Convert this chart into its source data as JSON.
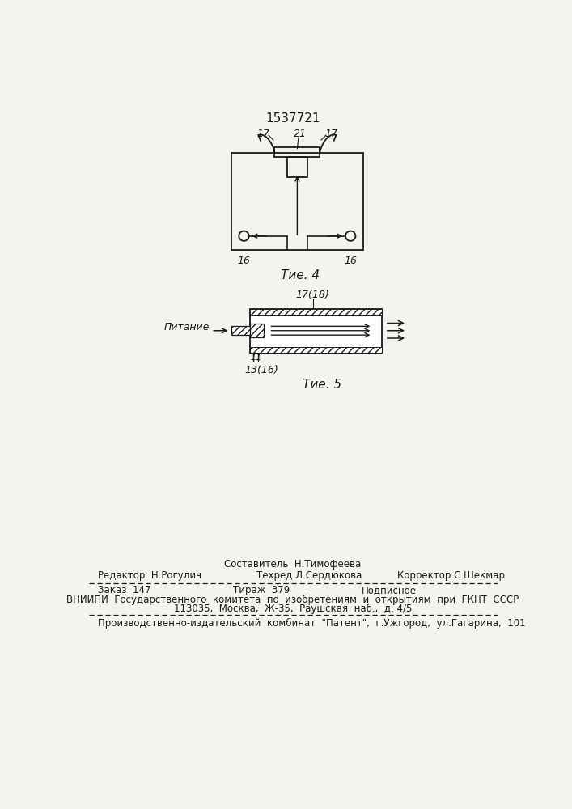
{
  "patent_number": "1537721",
  "fig4_caption": "Τие. 4",
  "fig5_caption": "Τие. 5",
  "fig4_label_16_left": "16",
  "fig4_label_16_right": "16",
  "fig4_label_17_left": "17",
  "fig4_label_17_right": "17",
  "fig4_label_21": "21",
  "fig5_label_17_18": "17(18)",
  "fig5_label_13_16": "13(16)",
  "fig5_label_pitanie": "Питание",
  "fig5_label_11": "11",
  "footer_line0_center": "Составитель  Н.Тимофеева",
  "footer_line1_left": "Редактор  Н.Рогулич",
  "footer_line1_center": "Техред Л.Сердюкова",
  "footer_line1_right": "Корректор С.Шекмар",
  "footer_zakaz": "Заказ  147",
  "footer_tirazh": "Тираж  379",
  "footer_podpisnoe": "Подписное",
  "footer_vniip": "ВНИИПИ  Государственного  комитета  по  изобретениям  и  открытиям  при  ГКНТ  СССР",
  "footer_address": "113035,  Москва,  Ж-35,  Раушская  наб.,  д. 4/5",
  "footer_producer": "Производственно-издательский  комбинат  \"Патент\",  г.Ужгород,  ул.Гагарина,  101",
  "bg_color": "#f5f3ef",
  "line_color": "#1a1a1a"
}
